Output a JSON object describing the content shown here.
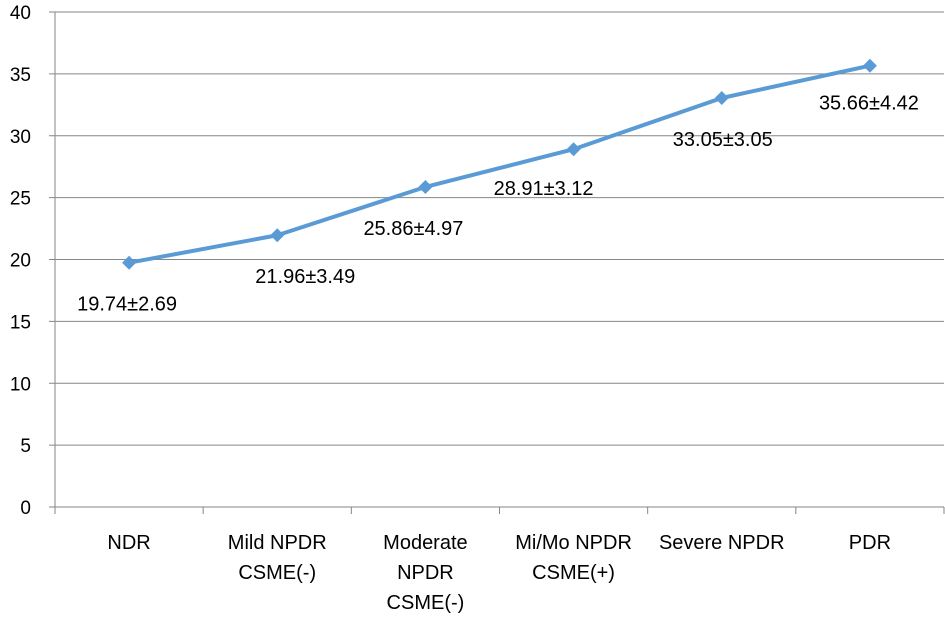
{
  "chart_data": {
    "type": "line",
    "categories": [
      [
        "NDR"
      ],
      [
        "Mild NPDR",
        "CSME(-)"
      ],
      [
        "Moderate",
        "NPDR",
        "CSME(-)"
      ],
      [
        "Mi/Mo NPDR",
        "CSME(+)"
      ],
      [
        "Severe NPDR"
      ],
      [
        "PDR"
      ]
    ],
    "series": [
      {
        "values": [
          19.74,
          21.96,
          25.86,
          28.91,
          33.05,
          35.66
        ],
        "labels": [
          "19.74±2.69",
          "21.96±3.49",
          "25.86±4.97",
          "28.91±3.12",
          "33.05±3.05",
          "35.66±4.42"
        ],
        "color": "#5B9BD5"
      }
    ],
    "title": "",
    "xlabel": "",
    "ylabel": "",
    "ylim": [
      0,
      40
    ],
    "yticks": [
      0,
      5,
      10,
      15,
      20,
      25,
      30,
      35,
      40
    ],
    "grid": true,
    "legend": "none"
  }
}
